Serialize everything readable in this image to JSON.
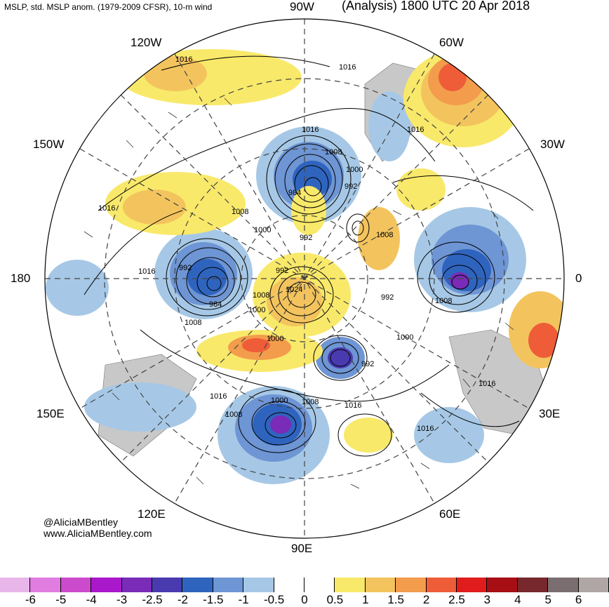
{
  "header": {
    "title_left": "MSLP, std. MSLP anom. (1979-2009 CFSR), 10-m wind",
    "title_right": "(Analysis) 1800 UTC 20 Apr 2018"
  },
  "longitude_labels": {
    "w90": "90W",
    "w60": "60W",
    "w30": "30W",
    "w120": "120W",
    "w150": "150W",
    "d180": "180",
    "d0": "0",
    "e150": "150E",
    "e30": "30E",
    "e120": "120E",
    "e60": "60E",
    "e90": "90E"
  },
  "pressure_labels": [
    "1016",
    "1016",
    "1016",
    "1016",
    "1008",
    "1000",
    "992",
    "984",
    "1008",
    "1000",
    "992",
    "1016",
    "992",
    "1008",
    "1016",
    "992",
    "1008",
    "1024",
    "1000",
    "984",
    "992",
    "1000",
    "1008",
    "992",
    "1008",
    "1000",
    "1016",
    "1016",
    "1008",
    "1000",
    "1008",
    "1016",
    "1016"
  ],
  "credit": {
    "handle": "@AliciaMBentley",
    "site": "www.AliciaMBentley.com"
  },
  "colorbar": {
    "colors": [
      "#e9b6e9",
      "#e17de1",
      "#cc4acc",
      "#aa18cc",
      "#7a2bb8",
      "#4a3ab0",
      "#2f64be",
      "#6e95d4",
      "#a6c8e6",
      "#ffffff",
      "#ffffff",
      "#f9e96a",
      "#f3c45e",
      "#f29c4c",
      "#ef5c38",
      "#e11c1c",
      "#a80f14",
      "#76282c",
      "#7b6e70",
      "#b0a6a6"
    ],
    "labels": [
      "-6",
      "-5",
      "-4",
      "-3",
      "-2.5",
      "-2",
      "-1.5",
      "-1",
      "-0.5",
      "0",
      "0.5",
      "1",
      "1.5",
      "2",
      "2.5",
      "3",
      "4",
      "5",
      "6"
    ]
  }
}
